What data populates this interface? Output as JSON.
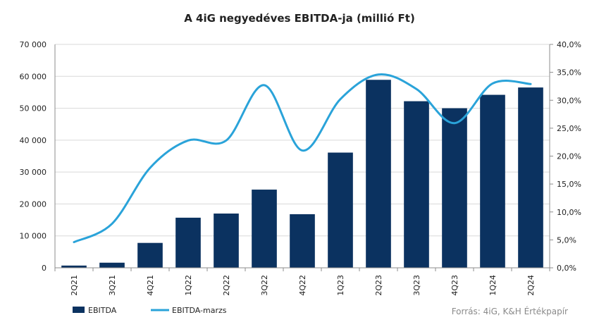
{
  "chart_data": {
    "type": "bar+line",
    "title": "A 4iG negyedéves EBITDA-ja (millió Ft)",
    "categories": [
      "2Q21",
      "3Q21",
      "4Q21",
      "1Q22",
      "2Q22",
      "3Q22",
      "4Q22",
      "1Q23",
      "2Q23",
      "3Q23",
      "4Q23",
      "1Q24",
      "2Q24"
    ],
    "series": [
      {
        "name": "EBITDA",
        "type": "bar",
        "axis": "left",
        "color": "#0b3260",
        "values": [
          700,
          1600,
          7800,
          15700,
          17000,
          24500,
          16800,
          36100,
          58900,
          52200,
          50000,
          54200,
          56500
        ]
      },
      {
        "name": "EBITDA-marzs",
        "type": "line",
        "axis": "right",
        "color": "#2aa3d9",
        "values": [
          4.6,
          7.9,
          17.9,
          22.8,
          22.8,
          32.7,
          21.0,
          30.2,
          34.6,
          32.0,
          25.9,
          33.0,
          32.9
        ]
      }
    ],
    "y_left": {
      "min": 0,
      "max": 70000,
      "ticks": [
        0,
        10000,
        20000,
        30000,
        40000,
        50000,
        60000,
        70000
      ],
      "tick_labels": [
        "0",
        "10 000",
        "20 000",
        "30 000",
        "40 000",
        "50 000",
        "60 000",
        "70 000"
      ]
    },
    "y_right": {
      "min": 0,
      "max": 40,
      "ticks": [
        0,
        5,
        10,
        15,
        20,
        25,
        30,
        35,
        40
      ],
      "tick_labels": [
        "0,0%",
        "5,0%",
        "10,0%",
        "15,0%",
        "20,0%",
        "25,0%",
        "30,0%",
        "35,0%",
        "40,0%"
      ]
    },
    "grid": true,
    "legend_position": "bottom-left",
    "legend": [
      "EBITDA",
      "EBITDA-marzs"
    ],
    "source": "Forrás: 4iG, K&H Értékpapír"
  }
}
